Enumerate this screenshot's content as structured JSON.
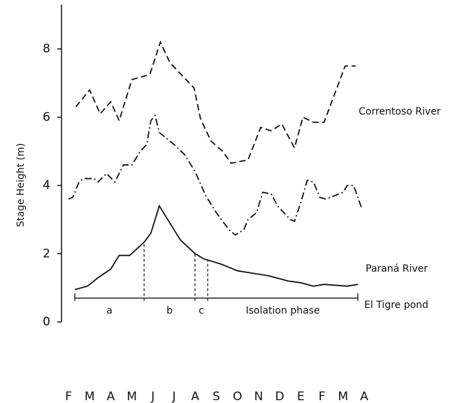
{
  "chart_data": {
    "type": "line",
    "y_label": "Stage Height (m)",
    "xlim": [
      -0.33,
      14.3
    ],
    "ylim": [
      0,
      9.3
    ],
    "xticks": [
      {
        "value": 0,
        "label": "F"
      },
      {
        "value": 1,
        "label": "M"
      },
      {
        "value": 2,
        "label": "A"
      },
      {
        "value": 3,
        "label": "M"
      },
      {
        "value": 4,
        "label": "J"
      },
      {
        "value": 5,
        "label": "J"
      },
      {
        "value": 6,
        "label": "A"
      },
      {
        "value": 7,
        "label": "S"
      },
      {
        "value": 8,
        "label": "O"
      },
      {
        "value": 9,
        "label": "N"
      },
      {
        "value": 10,
        "label": "D"
      },
      {
        "value": 11,
        "label": "E"
      },
      {
        "value": 12,
        "label": "F"
      },
      {
        "value": 13,
        "label": "M"
      },
      {
        "value": 14,
        "label": "A"
      }
    ],
    "yticks": [
      0,
      2,
      4,
      6,
      8
    ],
    "series": [
      {
        "name": "Correntoso River",
        "color": "#111111",
        "dash": "dashed",
        "x": [
          0.35,
          1,
          1.5,
          2,
          2.4,
          3,
          3.85,
          4.35,
          4.8,
          5.95,
          6.25,
          6.75,
          7.3,
          7.7,
          8.5,
          9.1,
          9.6,
          10.1,
          10.7,
          11.1,
          11.6,
          12.1,
          13.1,
          13.6
        ],
        "values": [
          6.3,
          6.8,
          6.1,
          6.45,
          5.9,
          7.1,
          7.25,
          8.2,
          7.6,
          6.85,
          5.95,
          5.3,
          5.0,
          4.65,
          4.75,
          5.7,
          5.6,
          5.8,
          5.1,
          6.0,
          5.85,
          5.85,
          7.5,
          7.5
        ]
      },
      {
        "name": "Paraná River",
        "color": "#111111",
        "dash": "dashdot",
        "x": [
          0,
          0.2,
          0.5,
          0.7,
          1.2,
          1.4,
          1.8,
          2.2,
          2.6,
          3.0,
          3.4,
          3.7,
          3.9,
          4.1,
          4.3,
          5.0,
          5.5,
          6.0,
          6.5,
          7.0,
          7.6,
          7.9,
          8.3,
          8.5,
          8.9,
          9.2,
          9.6,
          9.9,
          10.2,
          10.5,
          10.7,
          11.0,
          11.3,
          11.6,
          11.9,
          12.2,
          12.6,
          13.0,
          13.2,
          13.5,
          13.9
        ],
        "values": [
          3.6,
          3.65,
          4.1,
          4.2,
          4.2,
          4.1,
          4.35,
          4.1,
          4.6,
          4.6,
          5.0,
          5.2,
          5.9,
          6.05,
          5.55,
          5.2,
          4.9,
          4.4,
          3.7,
          3.2,
          2.7,
          2.55,
          2.7,
          3.0,
          3.2,
          3.8,
          3.75,
          3.4,
          3.2,
          3.0,
          2.95,
          3.5,
          4.15,
          4.1,
          3.65,
          3.6,
          3.7,
          3.8,
          4.0,
          4.0,
          3.3
        ]
      },
      {
        "name": "El Tigre pond",
        "color": "#111111",
        "dash": "solid",
        "x": [
          0.3,
          0.9,
          1.4,
          2.0,
          2.4,
          2.9,
          3.6,
          3.9,
          4.3,
          4.9,
          5.3,
          6.0,
          6.4,
          7.2,
          8.0,
          8.5,
          9.5,
          10.4,
          11.0,
          11.6,
          12.1,
          13.2,
          13.7
        ],
        "values": [
          0.95,
          1.05,
          1.3,
          1.55,
          1.95,
          1.95,
          2.35,
          2.6,
          3.4,
          2.8,
          2.4,
          2.0,
          1.85,
          1.7,
          1.5,
          1.45,
          1.35,
          1.2,
          1.15,
          1.05,
          1.1,
          1.05,
          1.1
        ]
      }
    ],
    "phase_y": 0.7,
    "phases": [
      {
        "label": "a",
        "x": [
          0.3,
          3.58
        ]
      },
      {
        "label": "b",
        "x": [
          3.58,
          5.99
        ]
      },
      {
        "label": "c",
        "x": [
          5.99,
          6.59
        ]
      },
      {
        "label": "Isolation phase",
        "x": [
          6.59,
          13.7
        ]
      }
    ]
  }
}
